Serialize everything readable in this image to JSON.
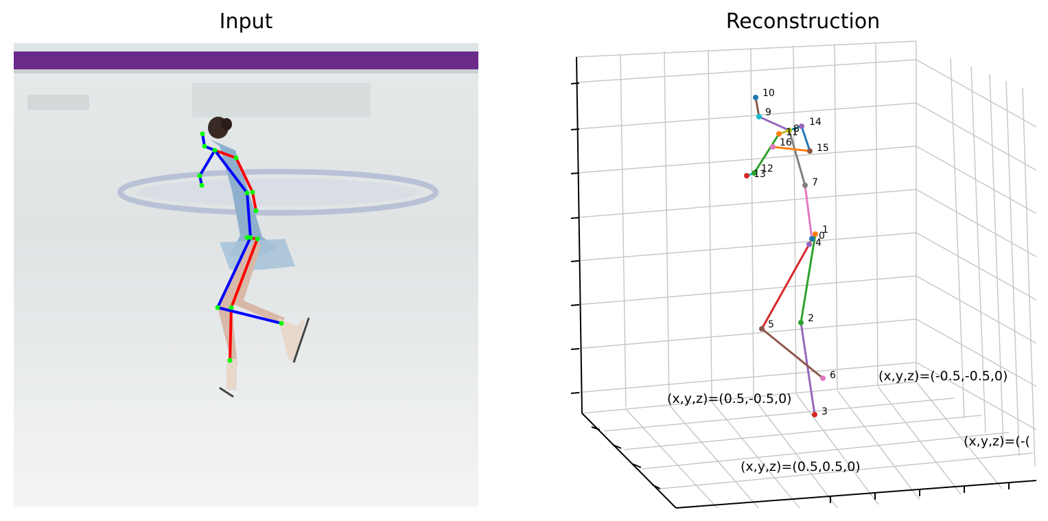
{
  "titles": {
    "left": "Input",
    "right": "Reconstruction"
  },
  "colors": {
    "skeleton_left_limb": "#ff0000",
    "skeleton_right_limb": "#0000ff",
    "skeleton_joint": "#00ff00",
    "rink_border": "#6a2a8a",
    "grid_line": "#c8c8c8"
  },
  "corner_labels": {
    "front_left": "(x,y,z)=(0.5,-0.5,0)",
    "back_right": "(x,y,z)=(-0.5,-0.5,0)",
    "front_bottom": "(x,y,z)=(0.5,0.5,0)",
    "right_cut": "(x,y,z)=(-("
  },
  "joints": [
    {
      "id": "0",
      "color": "#1f77b4"
    },
    {
      "id": "1",
      "color": "#ff7f0e"
    },
    {
      "id": "2",
      "color": "#2ca02c"
    },
    {
      "id": "3",
      "color": "#d62728"
    },
    {
      "id": "4",
      "color": "#9467bd"
    },
    {
      "id": "5",
      "color": "#8c564b"
    },
    {
      "id": "6",
      "color": "#e377c2"
    },
    {
      "id": "7",
      "color": "#7f7f7f"
    },
    {
      "id": "8",
      "color": "#bcbd22"
    },
    {
      "id": "9",
      "color": "#17becf"
    },
    {
      "id": "10",
      "color": "#1f77b4"
    },
    {
      "id": "11",
      "color": "#ff7f0e"
    },
    {
      "id": "12",
      "color": "#2ca02c"
    },
    {
      "id": "13",
      "color": "#d62728"
    },
    {
      "id": "14",
      "color": "#9467bd"
    },
    {
      "id": "15",
      "color": "#8c564b"
    },
    {
      "id": "16",
      "color": "#e377c2"
    }
  ],
  "bones": [
    {
      "from": "0",
      "to": "1",
      "color": "#1f77b4"
    },
    {
      "from": "1",
      "to": "2",
      "color": "#2ca02c"
    },
    {
      "from": "2",
      "to": "3",
      "color": "#9467bd"
    },
    {
      "from": "0",
      "to": "4",
      "color": "#ff7f0e"
    },
    {
      "from": "4",
      "to": "5",
      "color": "#d62728"
    },
    {
      "from": "5",
      "to": "6",
      "color": "#8c564b"
    },
    {
      "from": "0",
      "to": "7",
      "color": "#e377c2"
    },
    {
      "from": "7",
      "to": "8",
      "color": "#7f7f7f"
    },
    {
      "from": "8",
      "to": "9",
      "color": "#9467bd"
    },
    {
      "from": "9",
      "to": "10",
      "color": "#8c564b"
    },
    {
      "from": "8",
      "to": "11",
      "color": "#bcbd22"
    },
    {
      "from": "11",
      "to": "12",
      "color": "#2ca02c"
    },
    {
      "from": "12",
      "to": "13",
      "color": "#17becf"
    },
    {
      "from": "8",
      "to": "14",
      "color": "#17becf"
    },
    {
      "from": "14",
      "to": "15",
      "color": "#1f77b4"
    },
    {
      "from": "15",
      "to": "16",
      "color": "#ff7f0e"
    }
  ]
}
